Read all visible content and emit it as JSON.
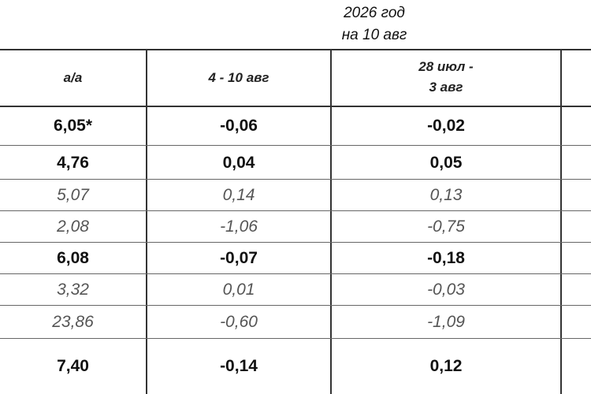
{
  "header": {
    "title_lines": [
      "2026 год",
      "на 10 авг"
    ]
  },
  "table": {
    "columns": [
      "а/а",
      "4 - 10 авг",
      [
        "28 июл -",
        "3 авг"
      ]
    ],
    "rows": [
      {
        "cells": [
          "6,05*",
          "-0,06",
          "-0,02"
        ],
        "style": "bold"
      },
      {
        "cells": [
          "4,76",
          "0,04",
          "0,05"
        ],
        "style": "bold"
      },
      {
        "cells": [
          "5,07",
          "0,14",
          "0,13"
        ],
        "style": "italic"
      },
      {
        "cells": [
          "2,08",
          "-1,06",
          "-0,75"
        ],
        "style": "italic"
      },
      {
        "cells": [
          "6,08",
          "-0,07",
          "-0,18"
        ],
        "style": "bold"
      },
      {
        "cells": [
          "3,32",
          "0,01",
          "-0,03"
        ],
        "style": "italic"
      },
      {
        "cells": [
          "23,86",
          "-0,60",
          "-1,09"
        ],
        "style": "italic"
      },
      {
        "cells": [
          "7,40",
          "-0,14",
          "0,12"
        ],
        "style": "bold"
      }
    ]
  }
}
